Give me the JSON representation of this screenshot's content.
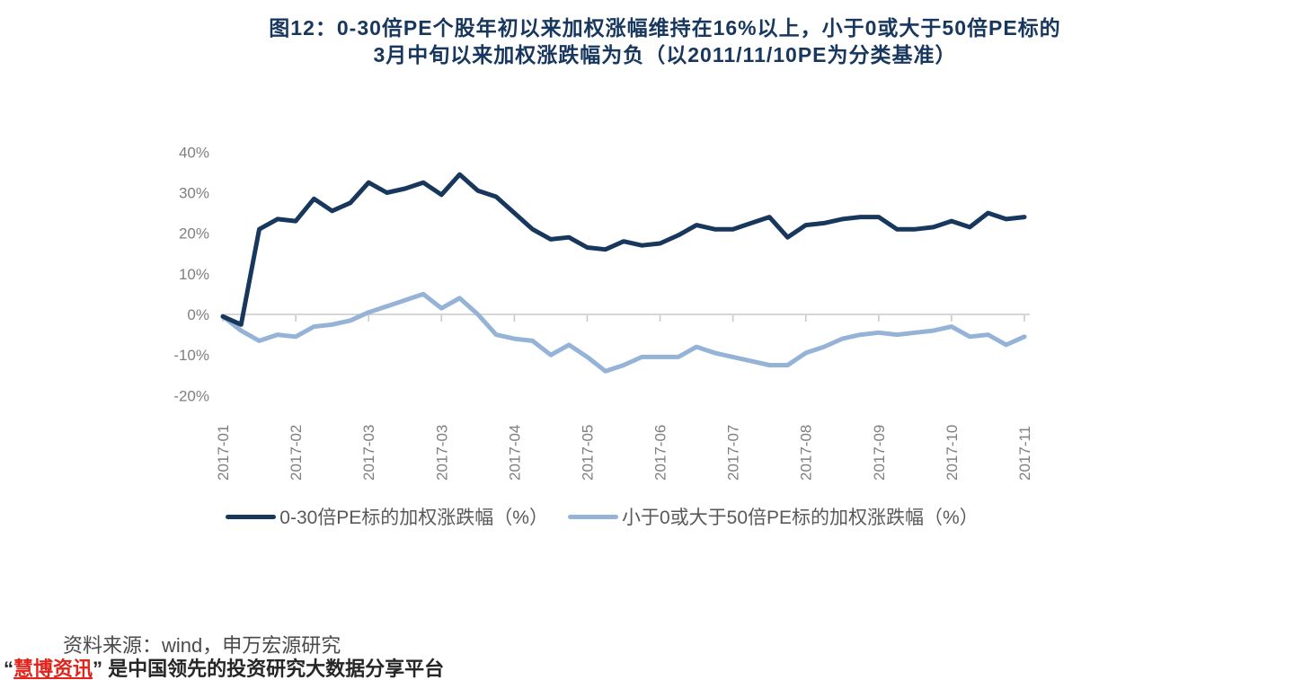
{
  "page": {
    "source_note": "资料来源：wind，申万宏源研究",
    "footer": {
      "open_quote": "“",
      "brand": "慧博资讯",
      "close_quote": "”",
      "tagline": " 是中国领先的投资研究大数据分享平台"
    }
  },
  "chart_data": {
    "type": "line",
    "title": "图12：0-30倍PE个股年初以来加权涨幅维持在16%以上，小于0或大于50倍PE标的3月中旬以来加权涨跌幅为负（以2011/11/10PE为分类基准）",
    "x_tick_labels": [
      "2017-01",
      "2017-02",
      "2017-03",
      "2017-03",
      "2017-04",
      "2017-05",
      "2017-06",
      "2017-07",
      "2017-08",
      "2017-09",
      "2017-10",
      "2017-11"
    ],
    "points_per_tick": 4,
    "y_tick_labels": [
      "40%",
      "30%",
      "20%",
      "10%",
      "0%",
      "-10%",
      "-20%"
    ],
    "y_tick_values": [
      40,
      30,
      20,
      10,
      0,
      -10,
      -20
    ],
    "ylim": [
      -20,
      40
    ],
    "grid": "zero-line-only",
    "legend_position": "bottom",
    "series": [
      {
        "name": "0-30倍PE标的加权涨跌幅（%）",
        "color": "#17375D",
        "values": [
          -0.5,
          -2.5,
          21,
          23.5,
          23,
          28.5,
          25.5,
          27.5,
          32.5,
          30,
          31,
          32.5,
          29.5,
          34.5,
          30.5,
          29,
          25,
          21,
          18.5,
          19,
          16.5,
          16,
          18,
          17,
          17.5,
          19.5,
          22,
          21,
          21,
          22.5,
          24,
          19,
          22,
          22.5,
          23.5,
          24,
          24,
          21,
          21,
          21.5,
          23,
          21.5,
          25,
          23.5,
          24
        ]
      },
      {
        "name": "小于0或大于50倍PE标的加权涨跌幅（%）",
        "color": "#95B3D7",
        "values": [
          -0.5,
          -4,
          -6.5,
          -5,
          -5.5,
          -3,
          -2.5,
          -1.5,
          0.5,
          2,
          3.5,
          5,
          1.5,
          4,
          0,
          -5,
          -6,
          -6.5,
          -10,
          -7.5,
          -10.5,
          -14,
          -12.5,
          -10.5,
          -10.5,
          -10.5,
          -8,
          -9.5,
          -10.5,
          -11.5,
          -12.5,
          -12.5,
          -9.5,
          -8,
          -6,
          -5,
          -4.5,
          -5,
          -4.5,
          -4,
          -3,
          -5.5,
          -5,
          -7.5,
          -5.5
        ]
      }
    ],
    "colors": {
      "title": "#17375E",
      "axis_text": "#7F7F7F",
      "axis_line": "#C9C9C9",
      "legend_text": "#595959"
    }
  }
}
